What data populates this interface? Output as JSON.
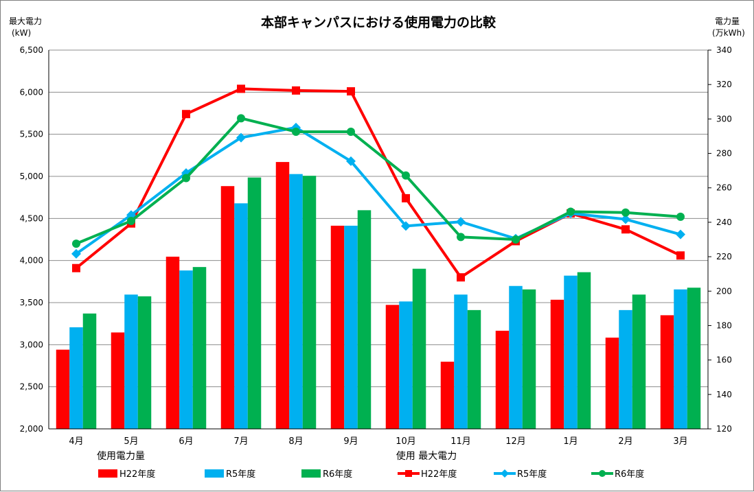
{
  "chart_data": {
    "type": "bar+line",
    "title": "本部キャンパスにおける使用電力の比較",
    "left_axis": {
      "label_line1": "最大電力",
      "label_line2": "(kW)",
      "range": [
        2000,
        6500
      ],
      "step": 500,
      "ticks": [
        "2,000",
        "2,500",
        "3,000",
        "3,500",
        "4,000",
        "4,500",
        "5,000",
        "5,500",
        "6,000",
        "6,500"
      ]
    },
    "right_axis": {
      "label_line1": "電力量",
      "label_line2": "(万kWh)",
      "range": [
        120,
        340
      ],
      "step": 20,
      "ticks": [
        "120",
        "140",
        "160",
        "180",
        "200",
        "220",
        "240",
        "260",
        "280",
        "300",
        "320",
        "340"
      ]
    },
    "categories": [
      "4月",
      "5月",
      "6月",
      "7月",
      "8月",
      "9月",
      "10月",
      "11月",
      "12月",
      "1月",
      "2月",
      "3月"
    ],
    "group_label_bars": "使用電力量",
    "group_label_lines": "使用 最大電力",
    "bar_series": [
      {
        "name": "H22年度",
        "color": "#ff0000",
        "axis": "right",
        "values": [
          166,
          176,
          220,
          261,
          275,
          238,
          192,
          159,
          177,
          195,
          173,
          186
        ]
      },
      {
        "name": "R5年度",
        "color": "#00b0f0",
        "axis": "right",
        "values": [
          179,
          198,
          212,
          251,
          268,
          238,
          194,
          198,
          203,
          209,
          189,
          201
        ]
      },
      {
        "name": "R6年度",
        "color": "#00b050",
        "axis": "right",
        "values": [
          187,
          197,
          214,
          266,
          267,
          247,
          213,
          189,
          201,
          211,
          198,
          202
        ]
      }
    ],
    "line_series": [
      {
        "name": "H22年度",
        "color": "#ff0000",
        "marker": "square",
        "axis": "left",
        "values": [
          3910,
          4440,
          5740,
          6040,
          6020,
          6010,
          4740,
          3800,
          4230,
          4560,
          4370,
          4060
        ]
      },
      {
        "name": "R5年度",
        "color": "#00b0f0",
        "marker": "diamond",
        "axis": "left",
        "values": [
          4080,
          4540,
          5040,
          5460,
          5580,
          5180,
          4410,
          4460,
          4260,
          4560,
          4490,
          4310
        ]
      },
      {
        "name": "R6年度",
        "color": "#00b050",
        "marker": "circle",
        "axis": "left",
        "values": [
          4200,
          4470,
          4980,
          5690,
          5530,
          5530,
          5010,
          4280,
          4250,
          4580,
          4570,
          4520
        ]
      }
    ],
    "gridlines": true,
    "legend_position": "bottom"
  }
}
